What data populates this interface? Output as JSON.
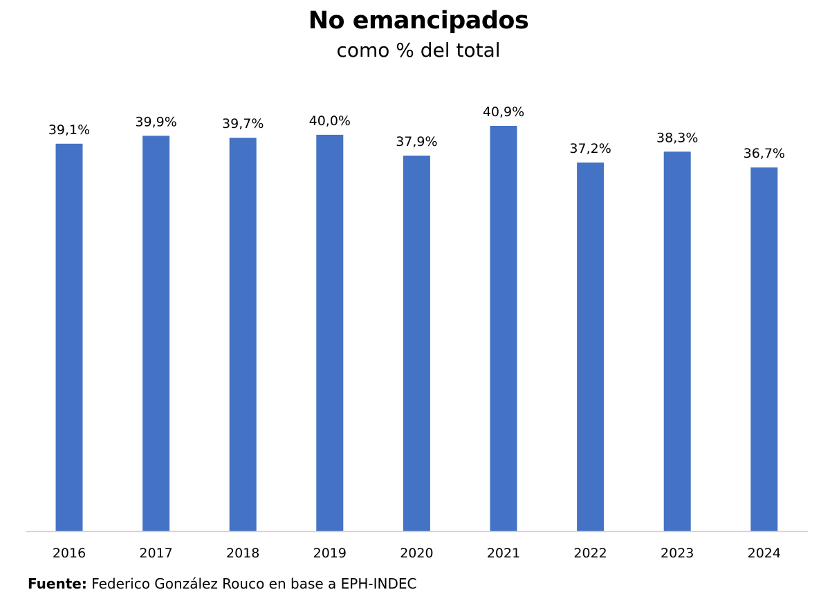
{
  "chart_data": {
    "type": "bar",
    "title": "No emancipados",
    "subtitle": "como % del total",
    "categories": [
      "2016",
      "2017",
      "2018",
      "2019",
      "2020",
      "2021",
      "2022",
      "2023",
      "2024"
    ],
    "values": [
      39.1,
      39.9,
      39.7,
      40.0,
      37.9,
      40.9,
      37.2,
      38.3,
      36.7
    ],
    "data_labels": [
      "39,1%",
      "39,9%",
      "39,7%",
      "40,0%",
      "37,9%",
      "40,9%",
      "37,2%",
      "38,3%",
      "36,7%"
    ],
    "ylim": [
      0,
      41
    ],
    "grid": false,
    "bar_color": "#4472C4",
    "xlabel": "",
    "ylabel": ""
  },
  "source": {
    "label": "Fuente:",
    "text": "Federico González Rouco en base a EPH-INDEC"
  }
}
